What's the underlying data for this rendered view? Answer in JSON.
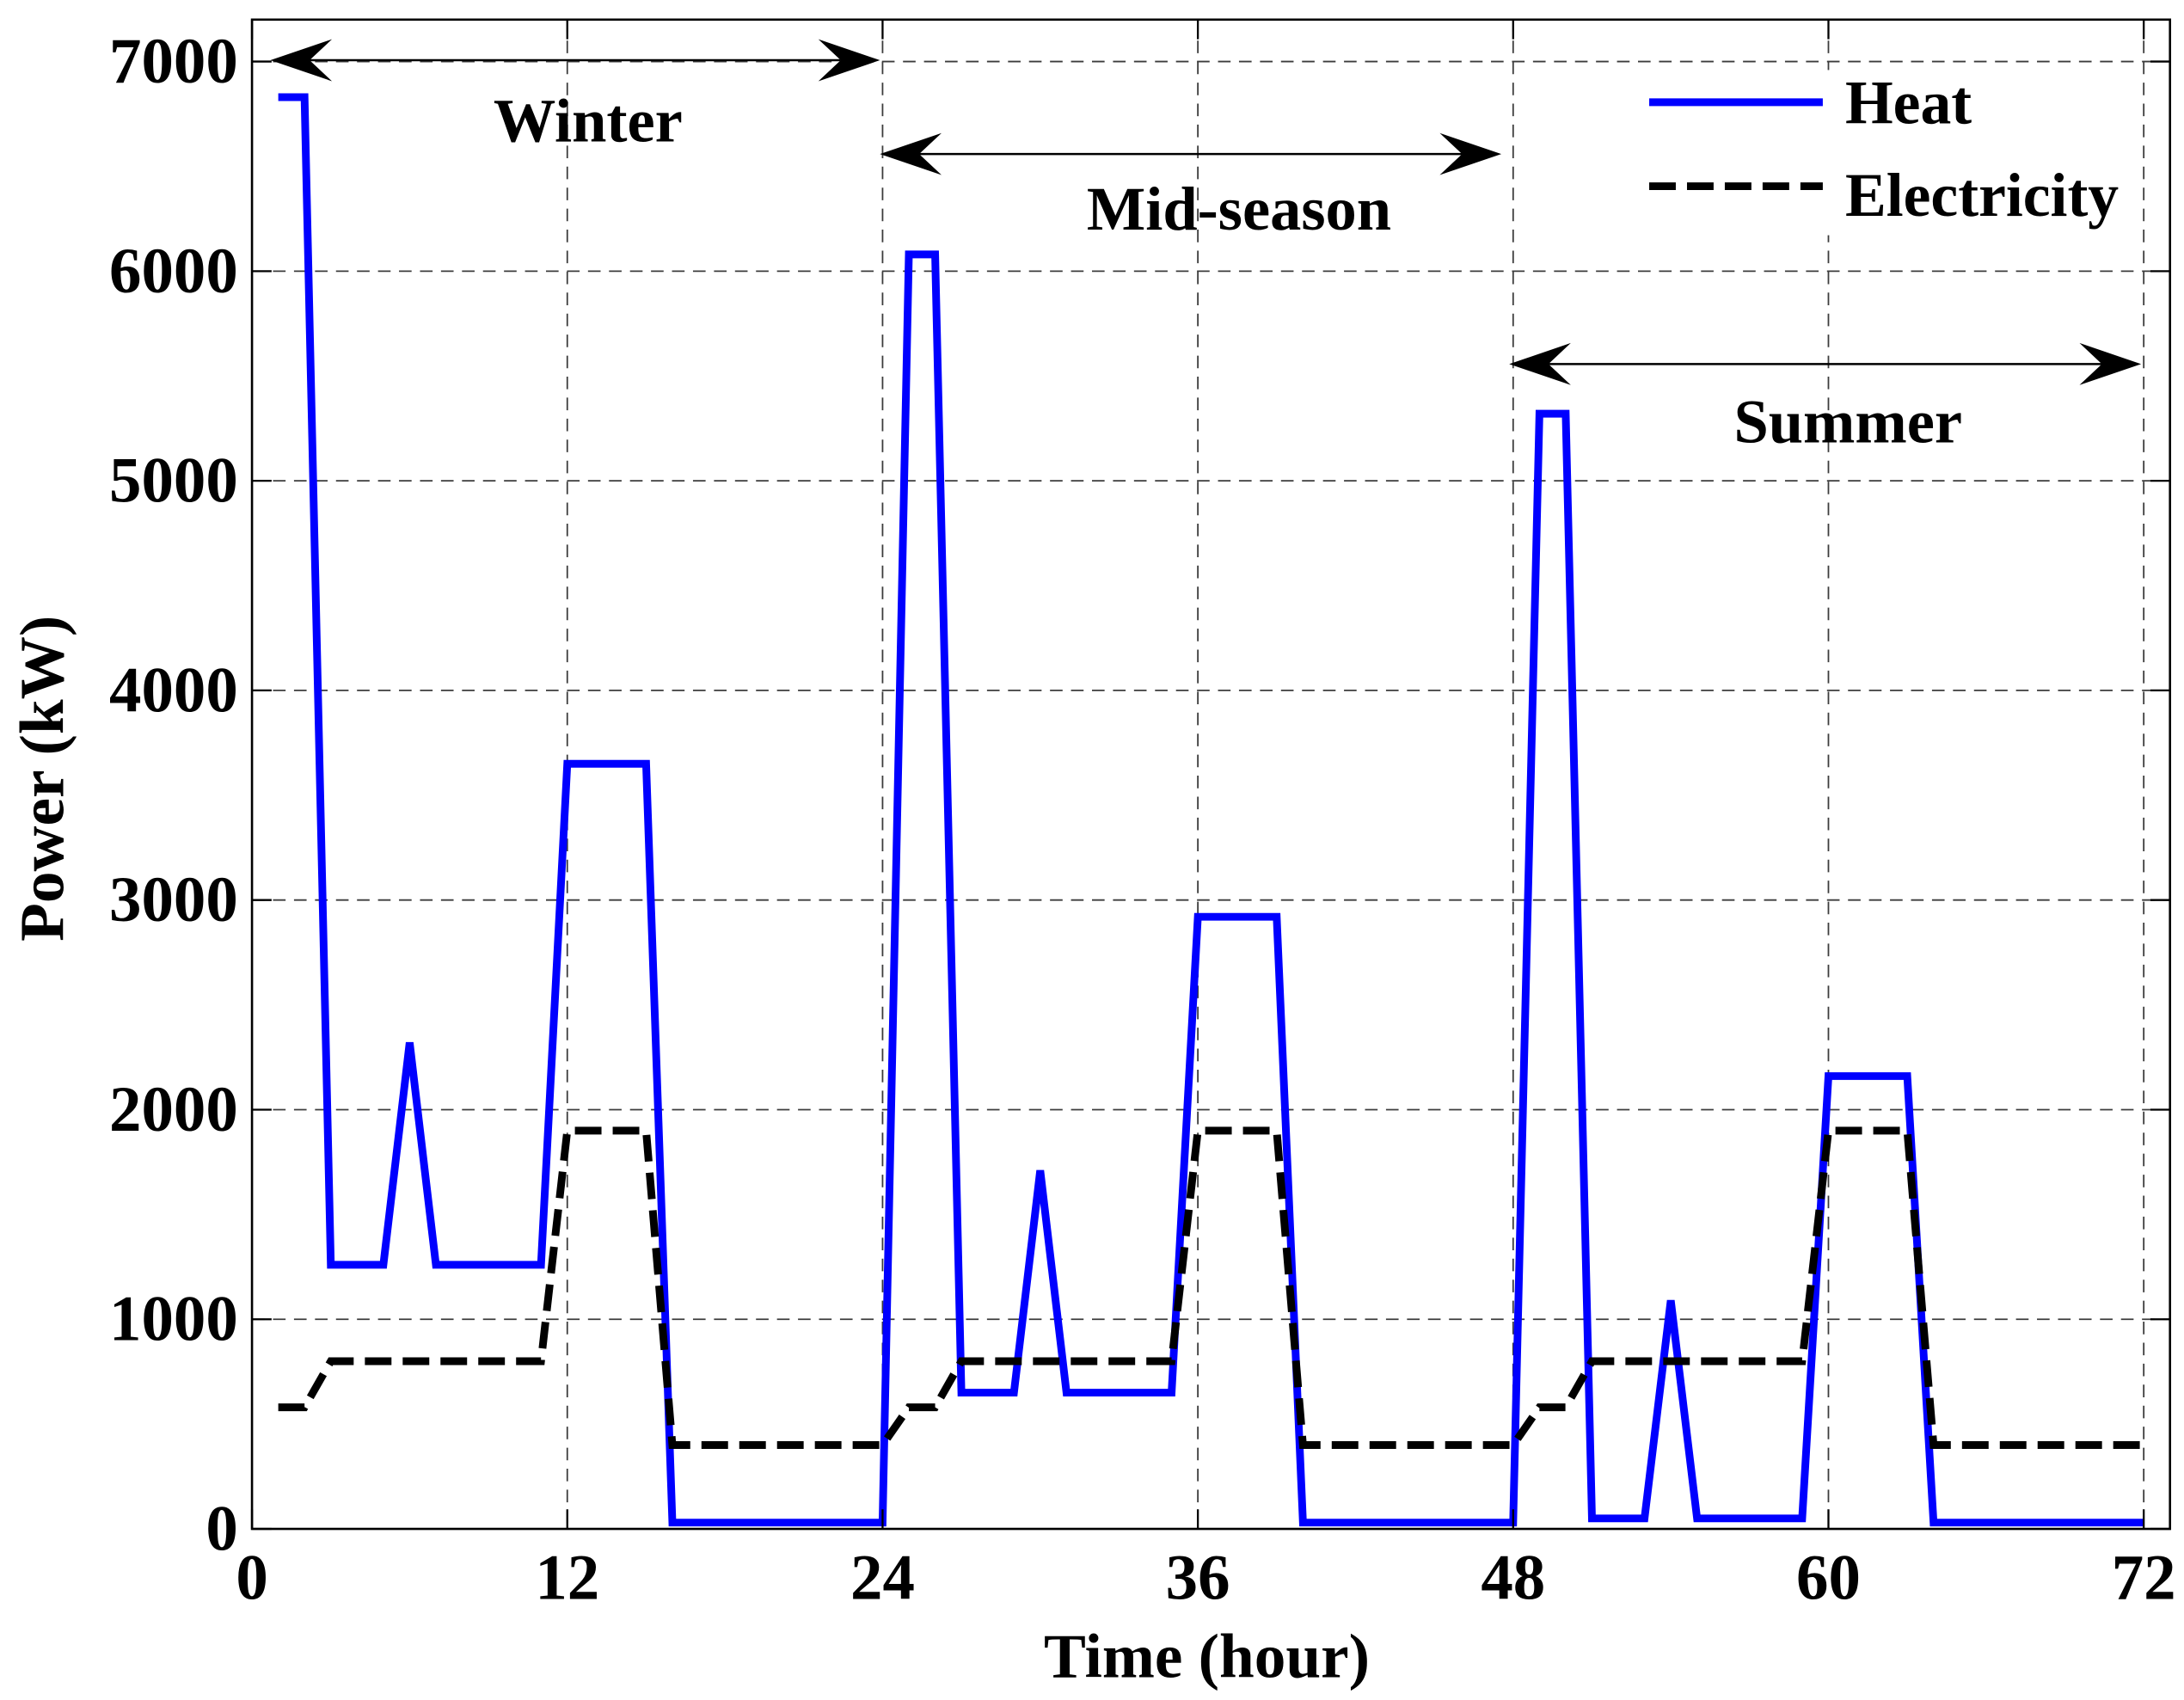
{
  "chart_data": {
    "type": "line",
    "xlabel": "Time (hour)",
    "ylabel": "Power (kW)",
    "xlim": [
      0,
      73
    ],
    "ylim": [
      0,
      7200
    ],
    "xticks": [
      0,
      12,
      24,
      36,
      48,
      60,
      72
    ],
    "yticks": [
      0,
      1000,
      2000,
      3000,
      4000,
      5000,
      6000,
      7000
    ],
    "grid": true,
    "x": [
      1,
      2,
      3,
      4,
      5,
      6,
      7,
      8,
      9,
      10,
      11,
      12,
      13,
      14,
      15,
      16,
      17,
      18,
      19,
      20,
      21,
      22,
      23,
      24,
      25,
      26,
      27,
      28,
      29,
      30,
      31,
      32,
      33,
      34,
      35,
      36,
      37,
      38,
      39,
      40,
      41,
      42,
      43,
      44,
      45,
      46,
      47,
      48,
      49,
      50,
      51,
      52,
      53,
      54,
      55,
      56,
      57,
      58,
      59,
      60,
      61,
      62,
      63,
      64,
      65,
      66,
      67,
      68,
      69,
      70,
      71,
      72
    ],
    "series": [
      {
        "name": "Heat",
        "color": "#0000ff",
        "values": [
          6830,
          6830,
          1260,
          1260,
          1260,
          2320,
          1260,
          1260,
          1260,
          1260,
          1260,
          3650,
          3650,
          3650,
          3650,
          30,
          30,
          30,
          30,
          30,
          30,
          30,
          30,
          30,
          6080,
          6080,
          650,
          650,
          650,
          1710,
          650,
          650,
          650,
          650,
          650,
          2920,
          2920,
          2920,
          2920,
          30,
          30,
          30,
          30,
          30,
          30,
          30,
          30,
          30,
          5320,
          5320,
          50,
          50,
          50,
          1090,
          50,
          50,
          50,
          50,
          50,
          2160,
          2160,
          2160,
          2160,
          30,
          30,
          30,
          30,
          30,
          30,
          30,
          30,
          30
        ]
      },
      {
        "name": "Electricity",
        "color": "#000000",
        "values": [
          580,
          580,
          800,
          800,
          800,
          800,
          800,
          800,
          800,
          800,
          800,
          1900,
          1900,
          1900,
          1900,
          400,
          400,
          400,
          400,
          400,
          400,
          400,
          400,
          400,
          580,
          580,
          800,
          800,
          800,
          800,
          800,
          800,
          800,
          800,
          800,
          1900,
          1900,
          1900,
          1900,
          400,
          400,
          400,
          400,
          400,
          400,
          400,
          400,
          400,
          580,
          580,
          800,
          800,
          800,
          800,
          800,
          800,
          800,
          800,
          800,
          1900,
          1900,
          1900,
          1900,
          400,
          400,
          400,
          400,
          400,
          400,
          400,
          400,
          400
        ]
      }
    ],
    "legend": {
      "position": "top-right"
    },
    "annotations": [
      {
        "label": "Winter",
        "hours": [
          0,
          24
        ]
      },
      {
        "label": "Mid-season",
        "hours": [
          24,
          48
        ]
      },
      {
        "label": "Summer",
        "hours": [
          48,
          72
        ]
      }
    ]
  }
}
